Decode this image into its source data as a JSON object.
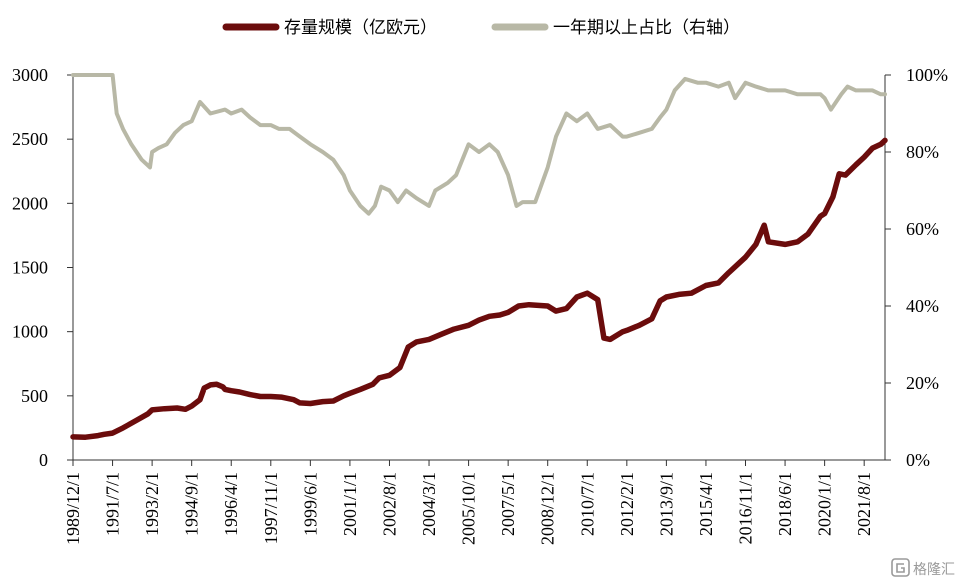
{
  "chart_data": {
    "type": "line",
    "title": "",
    "legend_position": "top",
    "grid": false,
    "series": [
      {
        "name": "存量规模（亿欧元）",
        "axis": "left",
        "color": "#6b0c0c",
        "points": [
          [
            "1989/12/1",
            180
          ],
          [
            "1990/6/1",
            178
          ],
          [
            "1990/12/1",
            190
          ],
          [
            "1991/3/1",
            200
          ],
          [
            "1991/7/1",
            210
          ],
          [
            "1991/12/1",
            250
          ],
          [
            "1992/6/1",
            305
          ],
          [
            "1992/12/1",
            360
          ],
          [
            "1993/2/1",
            390
          ],
          [
            "1993/8/1",
            400
          ],
          [
            "1994/2/1",
            405
          ],
          [
            "1994/6/1",
            395
          ],
          [
            "1994/9/1",
            420
          ],
          [
            "1995/1/1",
            470
          ],
          [
            "1995/3/1",
            560
          ],
          [
            "1995/6/1",
            585
          ],
          [
            "1995/9/1",
            590
          ],
          [
            "1995/12/1",
            570
          ],
          [
            "1996/1/1",
            550
          ],
          [
            "1996/4/1",
            540
          ],
          [
            "1996/8/1",
            530
          ],
          [
            "1997/1/1",
            510
          ],
          [
            "1997/6/1",
            495
          ],
          [
            "1997/11/1",
            495
          ],
          [
            "1998/4/1",
            490
          ],
          [
            "1998/10/1",
            470
          ],
          [
            "1999/1/1",
            445
          ],
          [
            "1999/6/1",
            440
          ],
          [
            "1999/12/1",
            455
          ],
          [
            "2000/5/1",
            460
          ],
          [
            "2000/10/1",
            500
          ],
          [
            "2001/1/1",
            520
          ],
          [
            "2001/6/1",
            550
          ],
          [
            "2001/12/1",
            590
          ],
          [
            "2002/3/1",
            640
          ],
          [
            "2002/8/1",
            660
          ],
          [
            "2003/1/1",
            720
          ],
          [
            "2003/5/1",
            880
          ],
          [
            "2003/9/1",
            920
          ],
          [
            "2004/3/1",
            940
          ],
          [
            "2004/9/1",
            980
          ],
          [
            "2005/3/1",
            1020
          ],
          [
            "2005/10/1",
            1050
          ],
          [
            "2006/3/1",
            1090
          ],
          [
            "2006/8/1",
            1120
          ],
          [
            "2007/1/1",
            1130
          ],
          [
            "2007/5/1",
            1150
          ],
          [
            "2007/10/1",
            1200
          ],
          [
            "2008/3/1",
            1210
          ],
          [
            "2008/12/1",
            1200
          ],
          [
            "2009/4/1",
            1160
          ],
          [
            "2009/9/1",
            1180
          ],
          [
            "2010/2/1",
            1270
          ],
          [
            "2010/7/1",
            1300
          ],
          [
            "2010/12/1",
            1250
          ],
          [
            "2011/3/1",
            950
          ],
          [
            "2011/6/1",
            940
          ],
          [
            "2011/12/1",
            1000
          ],
          [
            "2012/2/1",
            1010
          ],
          [
            "2012/8/1",
            1050
          ],
          [
            "2013/2/1",
            1100
          ],
          [
            "2013/6/1",
            1240
          ],
          [
            "2013/9/1",
            1270
          ],
          [
            "2014/3/1",
            1290
          ],
          [
            "2014/9/1",
            1300
          ],
          [
            "2015/4/1",
            1360
          ],
          [
            "2015/10/1",
            1380
          ],
          [
            "2016/3/1",
            1460
          ],
          [
            "2016/11/1",
            1580
          ],
          [
            "2017/4/1",
            1680
          ],
          [
            "2017/8/1",
            1830
          ],
          [
            "2017/10/1",
            1700
          ],
          [
            "2018/6/1",
            1680
          ],
          [
            "2018/12/1",
            1700
          ],
          [
            "2019/5/1",
            1760
          ],
          [
            "2019/11/1",
            1900
          ],
          [
            "2020/1/1",
            1920
          ],
          [
            "2020/5/1",
            2050
          ],
          [
            "2020/8/1",
            2230
          ],
          [
            "2020/11/1",
            2220
          ],
          [
            "2021/4/1",
            2300
          ],
          [
            "2021/8/1",
            2360
          ],
          [
            "2021/12/1",
            2430
          ],
          [
            "2022/4/1",
            2460
          ],
          [
            "2022/6/1",
            2490
          ]
        ]
      },
      {
        "name": "一年期以上占比（右轴）",
        "axis": "right",
        "color": "#b8b8a6",
        "points": [
          [
            "1989/12/1",
            100
          ],
          [
            "1991/3/1",
            100
          ],
          [
            "1991/7/1",
            100
          ],
          [
            "1991/9/1",
            90
          ],
          [
            "1991/12/1",
            86
          ],
          [
            "1992/4/1",
            82
          ],
          [
            "1992/9/1",
            78
          ],
          [
            "1993/1/1",
            76
          ],
          [
            "1993/2/1",
            80
          ],
          [
            "1993/5/1",
            81
          ],
          [
            "1993/9/1",
            82
          ],
          [
            "1994/1/1",
            85
          ],
          [
            "1994/5/1",
            87
          ],
          [
            "1994/9/1",
            88
          ],
          [
            "1995/1/1",
            93
          ],
          [
            "1995/6/1",
            90
          ],
          [
            "1996/1/1",
            91
          ],
          [
            "1996/4/1",
            90
          ],
          [
            "1996/9/1",
            91
          ],
          [
            "1997/1/1",
            89
          ],
          [
            "1997/6/1",
            87
          ],
          [
            "1997/11/1",
            87
          ],
          [
            "1998/3/1",
            86
          ],
          [
            "1998/8/1",
            86
          ],
          [
            "1999/1/1",
            84
          ],
          [
            "1999/6/1",
            82
          ],
          [
            "1999/12/1",
            80
          ],
          [
            "2000/5/1",
            78
          ],
          [
            "2000/10/1",
            74
          ],
          [
            "2001/1/1",
            70
          ],
          [
            "2001/6/1",
            66
          ],
          [
            "2001/10/1",
            64
          ],
          [
            "2002/1/1",
            66
          ],
          [
            "2002/4/1",
            71
          ],
          [
            "2002/8/1",
            70
          ],
          [
            "2002/12/1",
            67
          ],
          [
            "2003/4/1",
            70
          ],
          [
            "2003/9/1",
            68
          ],
          [
            "2004/3/1",
            66
          ],
          [
            "2004/6/1",
            70
          ],
          [
            "2004/12/1",
            72
          ],
          [
            "2005/4/1",
            74
          ],
          [
            "2005/10/1",
            82
          ],
          [
            "2006/3/1",
            80
          ],
          [
            "2006/8/1",
            82
          ],
          [
            "2006/12/1",
            80
          ],
          [
            "2007/5/1",
            74
          ],
          [
            "2007/9/1",
            66
          ],
          [
            "2007/12/1",
            67
          ],
          [
            "2008/6/1",
            67
          ],
          [
            "2008/12/1",
            76
          ],
          [
            "2009/4/1",
            84
          ],
          [
            "2009/9/1",
            90
          ],
          [
            "2010/2/1",
            88
          ],
          [
            "2010/7/1",
            90
          ],
          [
            "2010/12/1",
            86
          ],
          [
            "2011/6/1",
            87
          ],
          [
            "2011/12/1",
            84
          ],
          [
            "2012/2/1",
            84
          ],
          [
            "2012/8/1",
            85
          ],
          [
            "2013/2/1",
            86
          ],
          [
            "2013/6/1",
            89
          ],
          [
            "2013/9/1",
            91
          ],
          [
            "2014/1/1",
            96
          ],
          [
            "2014/6/1",
            99
          ],
          [
            "2014/12/1",
            98
          ],
          [
            "2015/4/1",
            98
          ],
          [
            "2015/10/1",
            97
          ],
          [
            "2016/3/1",
            98
          ],
          [
            "2016/6/1",
            94
          ],
          [
            "2016/11/1",
            98
          ],
          [
            "2017/4/1",
            97
          ],
          [
            "2017/10/1",
            96
          ],
          [
            "2018/6/1",
            96
          ],
          [
            "2018/12/1",
            95
          ],
          [
            "2019/5/1",
            95
          ],
          [
            "2019/11/1",
            95
          ],
          [
            "2020/1/1",
            94
          ],
          [
            "2020/4/1",
            91
          ],
          [
            "2020/9/1",
            95
          ],
          [
            "2020/12/1",
            97
          ],
          [
            "2021/4/1",
            96
          ],
          [
            "2021/8/1",
            96
          ],
          [
            "2021/12/1",
            96
          ],
          [
            "2022/4/1",
            95
          ],
          [
            "2022/6/1",
            95
          ]
        ]
      }
    ],
    "x_axis": {
      "type": "date",
      "range": [
        "1989/12/1",
        "2022/6/1"
      ],
      "ticks": [
        "1989/12/1",
        "1991/7/1",
        "1993/2/1",
        "1994/9/1",
        "1996/4/1",
        "1997/11/1",
        "1999/6/1",
        "2001/1/1",
        "2002/8/1",
        "2004/3/1",
        "2005/10/1",
        "2007/5/1",
        "2008/12/1",
        "2010/7/1",
        "2012/2/1",
        "2013/9/1",
        "2015/4/1",
        "2016/11/1",
        "2018/6/1",
        "2020/1/1",
        "2021/8/1"
      ],
      "tick_label_rotation": "vertical"
    },
    "y_left": {
      "range": [
        0,
        3000
      ],
      "ticks": [
        "0",
        "500",
        "1000",
        "1500",
        "2000",
        "2500",
        "3000"
      ]
    },
    "y_right": {
      "range": [
        0,
        100
      ],
      "ticks": [
        "0%",
        "20%",
        "40%",
        "60%",
        "80%",
        "100%"
      ]
    }
  },
  "watermark": {
    "icon": "gelonghui-logo-icon",
    "text": "格隆汇"
  }
}
